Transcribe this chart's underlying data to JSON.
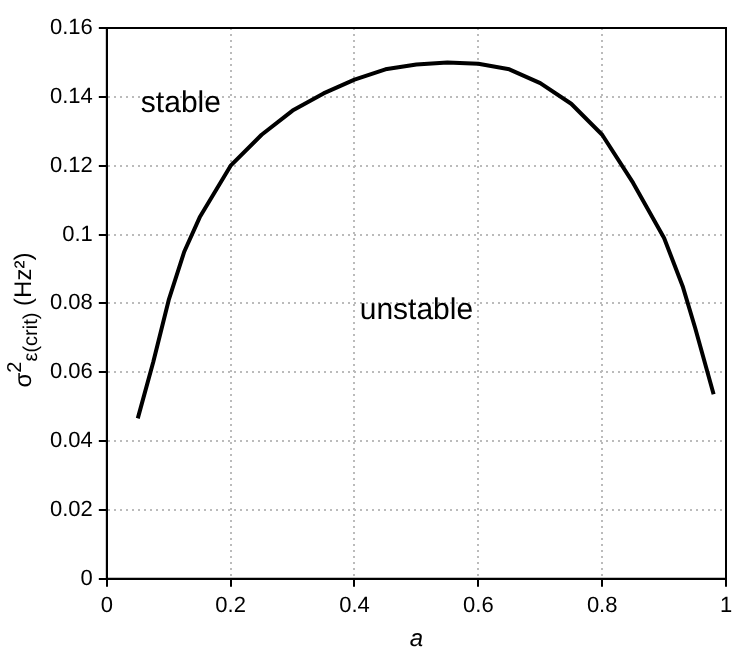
{
  "chart_data": {
    "type": "line",
    "xlabel": "a",
    "ylabel": "σ$^{2}$$_{ε(crit)}$ (Hz²)",
    "x": [
      0.05,
      0.075,
      0.1,
      0.125,
      0.15,
      0.2,
      0.25,
      0.3,
      0.35,
      0.4,
      0.45,
      0.5,
      0.55,
      0.6,
      0.65,
      0.7,
      0.75,
      0.8,
      0.85,
      0.9,
      0.93,
      0.95,
      0.98
    ],
    "series": [
      {
        "color": "#000000",
        "values": [
          0.0466,
          0.063,
          0.081,
          0.095,
          0.105,
          0.12,
          0.129,
          0.136,
          0.141,
          0.145,
          0.148,
          0.1494,
          0.15,
          0.1496,
          0.148,
          0.144,
          0.138,
          0.129,
          0.115,
          0.099,
          0.085,
          0.073,
          0.0536
        ]
      }
    ],
    "xlim": [
      0,
      1
    ],
    "xticks": [
      0,
      0.2,
      0.4,
      0.6,
      0.8,
      1
    ],
    "ylim": [
      0,
      0.16
    ],
    "yticks": [
      0,
      0.02,
      0.04,
      0.06,
      0.08,
      0.1,
      0.12,
      0.14,
      0.16
    ],
    "grid": true,
    "legend": false,
    "marker": "none",
    "line_style": "solid",
    "annotations": [
      "stable",
      "unstable"
    ]
  }
}
